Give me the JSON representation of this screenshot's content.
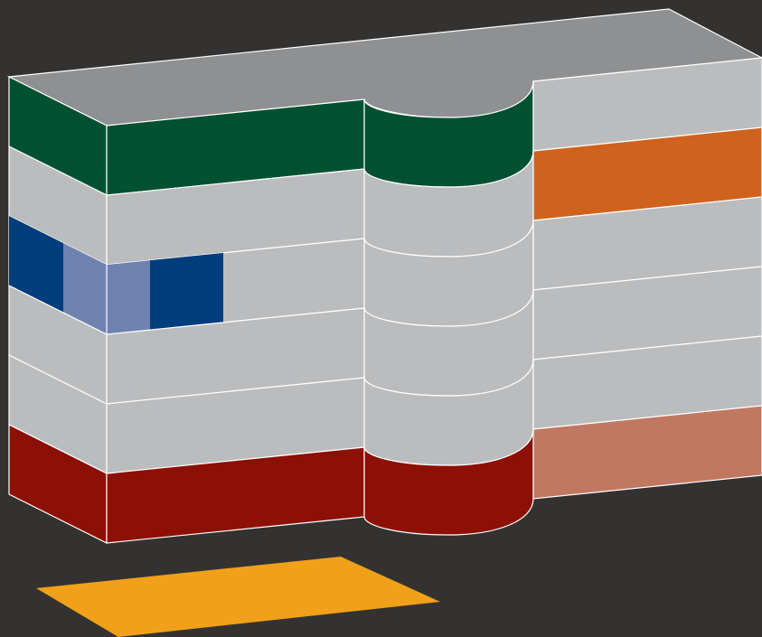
{
  "colors": {
    "background": "#333231",
    "roof": "#8f9091",
    "facade_gray": "#bbbcbd",
    "stroke": "#ffffff",
    "floor_green": "#005131",
    "floor_red": "#8c1003",
    "dark_blue": "#003d7d",
    "light_blue": "#6e82b0",
    "orange": "#cf631e",
    "salmon": "#c17860",
    "ground_pad": "#f0a119"
  },
  "building": {
    "floors": 6,
    "floor_colors": [
      {
        "left": "#005131",
        "middle": "#005131",
        "curve": "#005131",
        "right": "#bbbcbd"
      },
      {
        "left": "#bbbcbd",
        "middle": "#bbbcbd",
        "curve": "#bbbcbd",
        "right": "#cf631e"
      },
      {
        "left": "#bbbcbd",
        "middle": "#bbbcbd",
        "curve": "#bbbcbd",
        "right": "#bbbcbd"
      },
      {
        "left": "#bbbcbd",
        "middle": "#bbbcbd",
        "curve": "#bbbcbd",
        "right": "#bbbcbd"
      },
      {
        "left": "#bbbcbd",
        "middle": "#bbbcbd",
        "curve": "#bbbcbd",
        "right": "#bbbcbd"
      },
      {
        "left": "#8c1003",
        "middle": "#8c1003",
        "curve": "#8c1003",
        "right": "#c17860"
      }
    ],
    "highlight": {
      "floor": 3,
      "segments": [
        "#003d7d",
        "#6e82b0",
        "#6e82b0",
        "#003d7d"
      ]
    }
  }
}
